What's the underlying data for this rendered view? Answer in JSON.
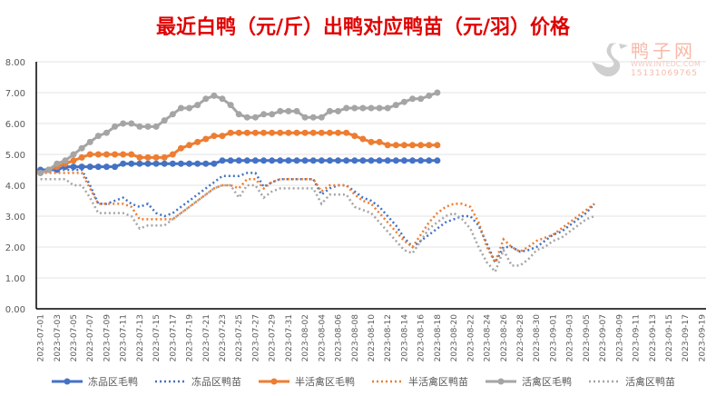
{
  "title": "最近白鸭（元/斤）出鸭对应鸭苗（元/羽）价格",
  "watermark": {
    "name": "鸭子网",
    "url": "WWW.INTEDC.COM",
    "phone": "15131069765"
  },
  "chart_data": {
    "type": "line",
    "title": "最近白鸭（元/斤）出鸭对应鸭苗（元/羽）价格",
    "ylim": [
      0,
      8
    ],
    "yticks": [
      "0.00",
      "1.00",
      "2.00",
      "3.00",
      "4.00",
      "5.00",
      "6.00",
      "7.00",
      "8.00"
    ],
    "x_start": "2023-07-01",
    "num_days": 81,
    "xtick_labels": [
      "2023-07-01",
      "2023-07-03",
      "2023-07-05",
      "2023-07-07",
      "2023-07-09",
      "2023-07-11",
      "2023-07-13",
      "2023-07-15",
      "2023-07-17",
      "2023-07-19",
      "2023-07-21",
      "2023-07-23",
      "2023-07-25",
      "2023-07-27",
      "2023-07-29",
      "2023-07-31",
      "2023-08-02",
      "2023-08-04",
      "2023-08-06",
      "2023-08-08",
      "2023-08-10",
      "2023-08-12",
      "2023-08-14",
      "2023-08-16",
      "2023-08-18",
      "2023-08-20",
      "2023-08-22",
      "2023-08-24",
      "2023-08-26",
      "2023-08-28",
      "2023-08-30",
      "2023-09-01",
      "2023-09-03",
      "2023-09-05",
      "2023-09-07",
      "2023-09-09",
      "2023-09-11",
      "2023-09-13",
      "2023-09-15",
      "2023-09-17",
      "2023-09-19"
    ],
    "grid": true,
    "legend": "bottom",
    "series": [
      {
        "name": "冻品区毛鸭",
        "color": "#4472c4",
        "style": "solid",
        "values": [
          4.5,
          4.5,
          4.5,
          4.6,
          4.6,
          4.6,
          4.6,
          4.6,
          4.6,
          4.6,
          4.7,
          4.7,
          4.7,
          4.7,
          4.7,
          4.7,
          4.7,
          4.7,
          4.7,
          4.7,
          4.7,
          4.7,
          4.8,
          4.8,
          4.8,
          4.8,
          4.8,
          4.8,
          4.8,
          4.8,
          4.8,
          4.8,
          4.8,
          4.8,
          4.8,
          4.8,
          4.8,
          4.8,
          4.8,
          4.8,
          4.8,
          4.8,
          4.8,
          4.8,
          4.8,
          4.8,
          4.8,
          4.8,
          4.8
        ]
      },
      {
        "name": "冻品区鸭苗",
        "color": "#4472c4",
        "style": "dotted",
        "values": [
          4.4,
          4.45,
          4.5,
          4.5,
          4.5,
          4.5,
          4.0,
          3.4,
          3.4,
          3.5,
          3.6,
          3.4,
          3.3,
          3.4,
          3.1,
          3.0,
          3.1,
          3.3,
          3.5,
          3.7,
          3.9,
          4.1,
          4.3,
          4.3,
          4.3,
          4.4,
          4.4,
          3.95,
          4.1,
          4.2,
          4.2,
          4.2,
          4.2,
          4.2,
          3.7,
          3.9,
          4.0,
          4.0,
          3.8,
          3.6,
          3.5,
          3.3,
          3.0,
          2.7,
          2.3,
          2.0,
          2.2,
          2.4,
          2.6,
          2.8,
          2.9,
          3.0,
          3.0,
          2.7,
          2.1,
          1.5,
          2.0,
          2.0,
          1.85,
          1.9,
          2.0,
          2.2,
          2.4,
          2.5,
          2.7,
          2.9,
          3.1,
          3.4
        ]
      },
      {
        "name": "半活禽区毛鸭",
        "color": "#ed7d31",
        "style": "solid",
        "values": [
          4.4,
          4.5,
          4.6,
          4.7,
          4.8,
          4.9,
          5.0,
          5.0,
          5.0,
          5.0,
          5.0,
          5.0,
          4.9,
          4.9,
          4.9,
          4.9,
          5.0,
          5.2,
          5.3,
          5.4,
          5.5,
          5.6,
          5.6,
          5.7,
          5.7,
          5.7,
          5.7,
          5.7,
          5.7,
          5.7,
          5.7,
          5.7,
          5.7,
          5.7,
          5.7,
          5.7,
          5.7,
          5.7,
          5.6,
          5.5,
          5.4,
          5.4,
          5.3,
          5.3,
          5.3,
          5.3,
          5.3,
          5.3,
          5.3
        ]
      },
      {
        "name": "半活禽区鸭苗",
        "color": "#ed7d31",
        "style": "dotted",
        "values": [
          4.4,
          4.4,
          4.4,
          4.4,
          4.4,
          4.4,
          3.9,
          3.4,
          3.4,
          3.4,
          3.4,
          3.3,
          2.9,
          2.9,
          2.9,
          2.9,
          2.9,
          3.1,
          3.3,
          3.5,
          3.7,
          3.9,
          4.0,
          4.0,
          3.9,
          4.2,
          4.2,
          3.9,
          4.1,
          4.2,
          4.2,
          4.2,
          4.2,
          4.2,
          3.8,
          4.0,
          4.0,
          4.0,
          3.7,
          3.5,
          3.4,
          3.1,
          2.8,
          2.5,
          2.2,
          2.0,
          2.4,
          2.8,
          3.1,
          3.3,
          3.4,
          3.4,
          3.3,
          2.8,
          2.0,
          1.5,
          2.25,
          2.0,
          1.85,
          2.0,
          2.2,
          2.3,
          2.4,
          2.6,
          2.8,
          3.0,
          3.2,
          3.4
        ]
      },
      {
        "name": "活禽区毛鸭",
        "color": "#a5a5a5",
        "style": "solid",
        "values": [
          4.4,
          4.5,
          4.7,
          4.8,
          5.0,
          5.2,
          5.4,
          5.6,
          5.7,
          5.9,
          6.0,
          6.0,
          5.9,
          5.9,
          5.9,
          6.1,
          6.3,
          6.5,
          6.5,
          6.6,
          6.8,
          6.9,
          6.8,
          6.6,
          6.3,
          6.2,
          6.2,
          6.3,
          6.3,
          6.4,
          6.4,
          6.4,
          6.2,
          6.2,
          6.2,
          6.4,
          6.4,
          6.5,
          6.5,
          6.5,
          6.5,
          6.5,
          6.5,
          6.6,
          6.7,
          6.8,
          6.8,
          6.9,
          7.0
        ]
      },
      {
        "name": "活禽区鸭苗",
        "color": "#a5a5a5",
        "style": "dotted",
        "values": [
          4.2,
          4.2,
          4.2,
          4.2,
          4.0,
          4.0,
          3.6,
          3.1,
          3.1,
          3.1,
          3.1,
          3.0,
          2.6,
          2.7,
          2.7,
          2.7,
          2.9,
          3.1,
          3.3,
          3.5,
          3.7,
          3.9,
          4.0,
          4.0,
          3.6,
          4.0,
          4.0,
          3.6,
          3.8,
          3.9,
          3.9,
          3.9,
          3.9,
          3.9,
          3.4,
          3.7,
          3.7,
          3.7,
          3.3,
          3.2,
          3.1,
          2.8,
          2.5,
          2.2,
          1.9,
          1.8,
          2.2,
          2.6,
          2.8,
          3.0,
          3.1,
          2.9,
          2.6,
          2.0,
          1.5,
          1.2,
          1.9,
          1.4,
          1.4,
          1.6,
          1.9,
          2.0,
          2.2,
          2.3,
          2.5,
          2.7,
          2.9,
          3.0
        ]
      }
    ]
  }
}
